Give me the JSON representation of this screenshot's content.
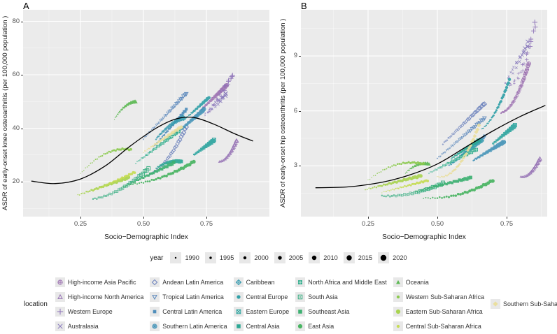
{
  "chart_data": [
    {
      "type": "scatter",
      "panel_label": "A",
      "xlabel": "Socio−Demographic Index",
      "ylabel": "ASDR of early-onset knee osteoarthritis (per 100,000 population )",
      "x_ticks": [
        "0.25",
        "0.50",
        "0.75"
      ],
      "x_tick_values": [
        0.25,
        0.5,
        0.75
      ],
      "y_ticks": [
        "20",
        "40",
        "60",
        "80"
      ],
      "y_tick_values": [
        20,
        40,
        60,
        80
      ],
      "xlim": [
        0.02,
        1.0
      ],
      "ylim": [
        7,
        84.5
      ],
      "grid": true,
      "legend_position": "bottom",
      "point_size_encodes": "year 1990-2020",
      "trend_line": [
        [
          0.055,
          20.2
        ],
        [
          0.15,
          19.3
        ],
        [
          0.25,
          21.0
        ],
        [
          0.35,
          26.0
        ],
        [
          0.45,
          33.5
        ],
        [
          0.55,
          40.0
        ],
        [
          0.63,
          43.5
        ],
        [
          0.7,
          44.0
        ],
        [
          0.78,
          41.5
        ],
        [
          0.86,
          38.0
        ],
        [
          0.935,
          35.2
        ]
      ],
      "series": [
        {
          "name": "High-income Asia Pacific",
          "x": [
            0.73,
            0.83
          ],
          "y": [
            47,
            56
          ],
          "curve": 0
        },
        {
          "name": "High-income North America",
          "x": [
            0.8,
            0.87
          ],
          "y": [
            27.5,
            35.5
          ],
          "curve": -2
        },
        {
          "name": "Western Europe",
          "x": [
            0.76,
            0.855
          ],
          "y": [
            46,
            60
          ],
          "curve": 0
        },
        {
          "name": "Australasia",
          "x": [
            0.745,
            0.83
          ],
          "y": [
            45,
            53
          ],
          "curve": 0
        },
        {
          "name": "Andean Latin America",
          "x": [
            0.52,
            0.67
          ],
          "y": [
            22.5,
            40.5
          ],
          "curve": -3
        },
        {
          "name": "Tropical Latin America",
          "x": [
            0.5,
            0.67
          ],
          "y": [
            36,
            53
          ],
          "curve": 0
        },
        {
          "name": "Central Latin America",
          "x": [
            0.54,
            0.67
          ],
          "y": [
            33,
            47
          ],
          "curve": 0
        },
        {
          "name": "Southern Latin America",
          "x": [
            0.63,
            0.74
          ],
          "y": [
            38,
            47
          ],
          "curve": 0
        },
        {
          "name": "Caribbean",
          "x": [
            0.55,
            0.66
          ],
          "y": [
            36,
            44
          ],
          "curve": 1
        },
        {
          "name": "Central Europe",
          "x": [
            0.66,
            0.76
          ],
          "y": [
            43,
            51.5
          ],
          "curve": 0
        },
        {
          "name": "Eastern Europe",
          "x": [
            0.7,
            0.78
          ],
          "y": [
            30,
            35.5
          ],
          "curve": 0
        },
        {
          "name": "Central Asia",
          "x": [
            0.55,
            0.65
          ],
          "y": [
            25,
            27.5
          ],
          "curve": 1
        },
        {
          "name": "North Africa and Middle East",
          "x": [
            0.47,
            0.64
          ],
          "y": [
            27,
            39
          ],
          "curve": 0
        },
        {
          "name": "South Asia",
          "x": [
            0.3,
            0.52
          ],
          "y": [
            13.5,
            25
          ],
          "curve": -2
        },
        {
          "name": "Southeast Asia",
          "x": [
            0.42,
            0.62
          ],
          "y": [
            18,
            27
          ],
          "curve": 0
        },
        {
          "name": "East Asia",
          "x": [
            0.45,
            0.7
          ],
          "y": [
            19,
            27.5
          ],
          "curve": -1.5
        },
        {
          "name": "Oceania",
          "x": [
            0.385,
            0.47
          ],
          "y": [
            43.5,
            50
          ],
          "curve": 1.5
        },
        {
          "name": "Western Sub-Saharan Africa",
          "x": [
            0.25,
            0.45
          ],
          "y": [
            23,
            32
          ],
          "curve": 3
        },
        {
          "name": "Eastern Sub-Saharan Africa",
          "x": [
            0.24,
            0.44
          ],
          "y": [
            15,
            21.5
          ],
          "curve": 0
        },
        {
          "name": "Central Sub-Saharan Africa",
          "x": [
            0.3,
            0.465
          ],
          "y": [
            16.5,
            23.5
          ],
          "curve": 0
        },
        {
          "name": "Southern Sub-Saharan Africa",
          "x": [
            0.5,
            0.65
          ],
          "y": [
            31,
            40.5
          ],
          "curve": 0
        }
      ]
    },
    {
      "type": "scatter",
      "panel_label": "B",
      "xlabel": "Socio−Demographic Index",
      "ylabel": "ASDR of early-onset hip osteoarthritis (per 100,000 population )",
      "x_ticks": [
        "0.25",
        "0.50",
        "0.75"
      ],
      "x_tick_values": [
        0.25,
        0.5,
        0.75
      ],
      "y_ticks": [
        "3",
        "6",
        "9"
      ],
      "y_tick_values": [
        3,
        6,
        9
      ],
      "xlim": [
        0.02,
        0.92
      ],
      "ylim": [
        0.2,
        11.5
      ],
      "grid": true,
      "legend_position": "bottom",
      "point_size_encodes": "year 1990-2020",
      "trend_line": [
        [
          0.06,
          1.8
        ],
        [
          0.18,
          1.85
        ],
        [
          0.3,
          2.1
        ],
        [
          0.4,
          2.5
        ],
        [
          0.5,
          3.1
        ],
        [
          0.6,
          4.0
        ],
        [
          0.7,
          4.9
        ],
        [
          0.8,
          5.7
        ],
        [
          0.89,
          6.3
        ]
      ],
      "series": [
        {
          "name": "High-income Asia Pacific",
          "x": [
            0.73,
            0.83
          ],
          "y": [
            5.9,
            8.6
          ],
          "curve": -0.6
        },
        {
          "name": "High-income North America",
          "x": [
            0.8,
            0.87
          ],
          "y": [
            2.4,
            3.4
          ],
          "curve": -0.3
        },
        {
          "name": "Western Europe",
          "x": [
            0.76,
            0.855
          ],
          "y": [
            7.4,
            10.9
          ],
          "curve": -0.8
        },
        {
          "name": "Australasia",
          "x": [
            0.745,
            0.83
          ],
          "y": [
            7.5,
            9.7
          ],
          "curve": 0
        },
        {
          "name": "Andean Latin America",
          "x": [
            0.52,
            0.67
          ],
          "y": [
            4.2,
            6.4
          ],
          "curve": 0
        },
        {
          "name": "Tropical Latin America",
          "x": [
            0.5,
            0.67
          ],
          "y": [
            3.4,
            5.6
          ],
          "curve": 0
        },
        {
          "name": "Central Latin America",
          "x": [
            0.54,
            0.67
          ],
          "y": [
            3.0,
            4.6
          ],
          "curve": 0
        },
        {
          "name": "Southern Latin America",
          "x": [
            0.63,
            0.74
          ],
          "y": [
            3.3,
            4.3
          ],
          "curve": 0
        },
        {
          "name": "Caribbean",
          "x": [
            0.55,
            0.66
          ],
          "y": [
            3.1,
            4.4
          ],
          "curve": 0
        },
        {
          "name": "Central Europe",
          "x": [
            0.66,
            0.76
          ],
          "y": [
            5.0,
            7.7
          ],
          "curve": -0.4
        },
        {
          "name": "Eastern Europe",
          "x": [
            0.7,
            0.78
          ],
          "y": [
            4.2,
            5.2
          ],
          "curve": 0
        },
        {
          "name": "Central Asia",
          "x": [
            0.55,
            0.65
          ],
          "y": [
            3.4,
            4.4
          ],
          "curve": 0
        },
        {
          "name": "North Africa and Middle East",
          "x": [
            0.47,
            0.64
          ],
          "y": [
            2.6,
            3.9
          ],
          "curve": 0
        },
        {
          "name": "South Asia",
          "x": [
            0.3,
            0.52
          ],
          "y": [
            1.35,
            2.05
          ],
          "curve": -0.2
        },
        {
          "name": "Southeast Asia",
          "x": [
            0.42,
            0.62
          ],
          "y": [
            1.6,
            2.35
          ],
          "curve": 0
        },
        {
          "name": "East Asia",
          "x": [
            0.45,
            0.7
          ],
          "y": [
            1.25,
            2.2
          ],
          "curve": -0.3
        },
        {
          "name": "Oceania",
          "x": [
            0.385,
            0.47
          ],
          "y": [
            2.6,
            3.1
          ],
          "curve": 0.2
        },
        {
          "name": "Western Sub-Saharan Africa",
          "x": [
            0.25,
            0.45
          ],
          "y": [
            2.2,
            3.1
          ],
          "curve": 0.4
        },
        {
          "name": "Eastern Sub-Saharan Africa",
          "x": [
            0.24,
            0.44
          ],
          "y": [
            1.7,
            2.45
          ],
          "curve": 0
        },
        {
          "name": "Central Sub-Saharan Africa",
          "x": [
            0.3,
            0.465
          ],
          "y": [
            1.55,
            2.2
          ],
          "curve": 0
        },
        {
          "name": "Southern Sub-Saharan Africa",
          "x": [
            0.5,
            0.65
          ],
          "y": [
            2.4,
            5.2
          ],
          "curve": -0.8
        }
      ]
    }
  ],
  "year_legend": {
    "title": "year",
    "years": [
      "1990",
      "1995",
      "2000",
      "2005",
      "2010",
      "2015",
      "2020"
    ]
  },
  "location_legend": {
    "title": "location",
    "items": [
      {
        "name": "High-income Asia Pacific",
        "marker": "circle-plus",
        "color": "#9b6fb0"
      },
      {
        "name": "High-income North America",
        "marker": "triangle-open",
        "color": "#9571b4"
      },
      {
        "name": "Western Europe",
        "marker": "plus",
        "color": "#8d72b8"
      },
      {
        "name": "Australasia",
        "marker": "cross",
        "color": "#8374ba"
      },
      {
        "name": "Andean Latin America",
        "marker": "diamond-open",
        "color": "#6a80bc"
      },
      {
        "name": "Tropical Latin America",
        "marker": "triangle-down-open",
        "color": "#5b88bc"
      },
      {
        "name": "Central Latin America",
        "marker": "square-small",
        "color": "#4f8ebb"
      },
      {
        "name": "Southern Latin America",
        "marker": "circle-asterisk",
        "color": "#4594b8"
      },
      {
        "name": "Caribbean",
        "marker": "diamond-plus",
        "color": "#399cb0"
      },
      {
        "name": "Central Europe",
        "marker": "circle-small",
        "color": "#32a1a8"
      },
      {
        "name": "Eastern Europe",
        "marker": "square-cross",
        "color": "#2ea5a0"
      },
      {
        "name": "Central Asia",
        "marker": "square",
        "color": "#2da895"
      },
      {
        "name": "North Africa and Middle East",
        "marker": "square-plus",
        "color": "#2fab8a"
      },
      {
        "name": "South Asia",
        "marker": "square-open-dot",
        "color": "#34ad7f"
      },
      {
        "name": "Southeast Asia",
        "marker": "square",
        "color": "#3db172"
      },
      {
        "name": "East Asia",
        "marker": "circle",
        "color": "#49b462"
      },
      {
        "name": "Oceania",
        "marker": "triangle",
        "color": "#5cb953"
      },
      {
        "name": "Western Sub-Saharan Africa",
        "marker": "dot",
        "color": "#8cca4f"
      },
      {
        "name": "Eastern Sub-Saharan Africa",
        "marker": "circle",
        "color": "#a9d450"
      },
      {
        "name": "Central Sub-Saharan Africa",
        "marker": "dot",
        "color": "#c6dc54"
      },
      {
        "name": "Southern Sub-Saharan Africa",
        "marker": "diamond",
        "color": "#eadf9e"
      }
    ],
    "columns": [
      [
        0,
        1,
        2,
        3
      ],
      [
        4,
        5,
        6,
        7
      ],
      [
        8,
        9,
        10,
        11
      ],
      [
        12,
        13,
        14,
        15
      ],
      [
        16,
        17,
        18,
        19
      ],
      [
        20
      ]
    ]
  },
  "style": {
    "plot_background": "#ebebeb",
    "gridline_color": "#ffffff",
    "trend_color": "#000000",
    "tick_text_color": "#4d4d4d"
  }
}
